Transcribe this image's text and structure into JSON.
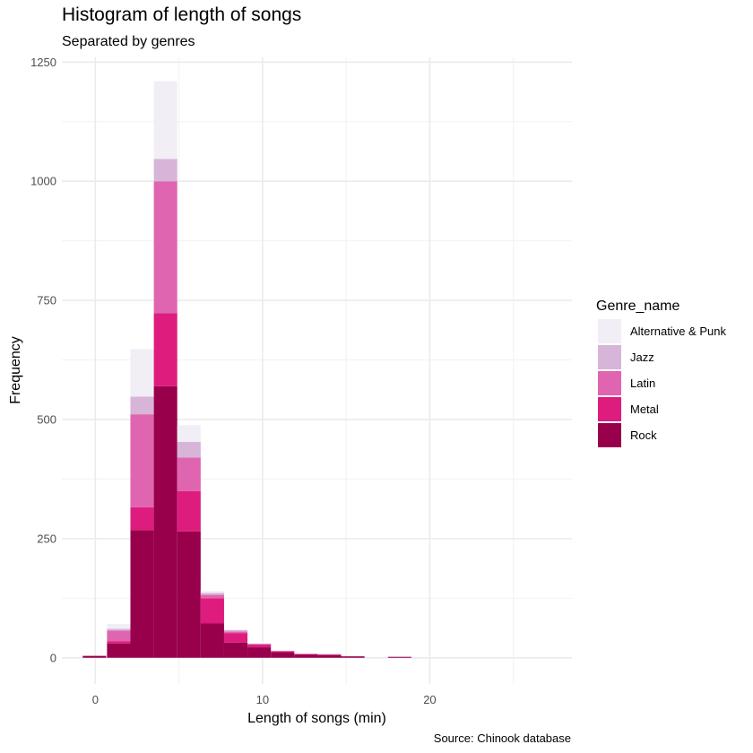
{
  "chart_data": {
    "type": "bar",
    "stacked": true,
    "title": "Histogram of length of songs",
    "subtitle": "Separated by genres",
    "xlabel": "Length of songs (min)",
    "ylabel": "Frequency",
    "caption": "Source: Chinook database",
    "xlim": [
      -2,
      28.5
    ],
    "ylim": [
      -55,
      1260
    ],
    "x_ticks": [
      0,
      10,
      20
    ],
    "y_ticks": [
      0,
      250,
      500,
      750,
      1000,
      1250
    ],
    "grid": true,
    "legend_title": "Genre_name",
    "legend_position": "right",
    "bin_width": 1.4,
    "bin_centers": [
      -0.05,
      1.4,
      2.8,
      4.2,
      5.6,
      7.0,
      8.4,
      9.8,
      11.2,
      12.6,
      14.0,
      15.4,
      16.8,
      18.2
    ],
    "series": [
      {
        "name": "Rock",
        "color": "#98004c",
        "values": [
          4,
          30,
          268,
          570,
          265,
          72,
          32,
          22,
          12,
          7,
          6,
          3,
          0,
          2
        ]
      },
      {
        "name": "Metal",
        "color": "#de1c7d",
        "values": [
          0,
          5,
          48,
          153,
          85,
          53,
          20,
          6,
          2,
          1,
          1,
          0,
          0,
          0
        ]
      },
      {
        "name": "Latin",
        "color": "#df65b0",
        "values": [
          0,
          22,
          195,
          277,
          70,
          7,
          3,
          1,
          0,
          0,
          0,
          0,
          0,
          0
        ]
      },
      {
        "name": "Jazz",
        "color": "#d7b5d8",
        "values": [
          0,
          4,
          37,
          47,
          33,
          4,
          3,
          1,
          0,
          0,
          1,
          0,
          0,
          0
        ]
      },
      {
        "name": "Alternative & Punk",
        "color": "#f1eef6",
        "values": [
          0,
          10,
          100,
          163,
          35,
          4,
          2,
          1,
          0,
          0,
          0,
          0,
          0,
          0
        ]
      }
    ],
    "legend_order": [
      "Alternative & Punk",
      "Jazz",
      "Latin",
      "Metal",
      "Rock"
    ]
  }
}
